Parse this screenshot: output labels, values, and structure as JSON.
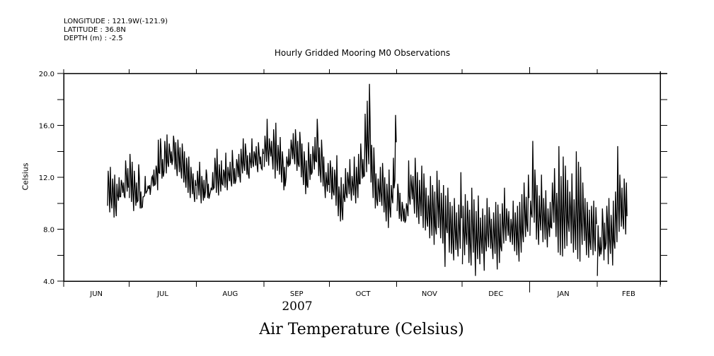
{
  "header": {
    "longitude": "LONGITUDE : 121.9W(-121.9)",
    "latitude": "LATITUDE : 36.8N",
    "depth": "DEPTH (m) : -2.5"
  },
  "chart_data": {
    "type": "line",
    "title": "Air Temperature (Celsius)",
    "subtitle": "Hourly Gridded Mooring M0 Observations",
    "xlabel": "2007",
    "ylabel": "Celsius",
    "ylim": [
      4,
      20
    ],
    "yticks": [
      "4.0",
      "8.0",
      "12.0",
      "16.0",
      "20.0"
    ],
    "y_minor_ticks": [
      6,
      10,
      14,
      18
    ],
    "x_range": [
      "2007-06-01",
      "2008-03-01"
    ],
    "grid": false,
    "x_tick_labels": [
      "JUN",
      "JUL",
      "AUG",
      "SEP",
      "OCT",
      "NOV",
      "DEC",
      "JAN",
      "FEB"
    ],
    "color": "#000000",
    "months": [
      {
        "name": "JUN",
        "days": 30,
        "start_day": 21,
        "high": [
          12.5,
          12.8,
          11.9,
          12.2,
          11.5,
          12.0,
          11.8,
          11.6,
          13.3,
          12.7
        ],
        "low": [
          9.8,
          9.3,
          9.6,
          8.9,
          9.0,
          10.2,
          10.5,
          10.8,
          10.4,
          10.9
        ]
      },
      {
        "name": "JUL",
        "days": 31,
        "start_day": 1,
        "high": [
          13.8,
          13.2,
          12.5,
          11.6,
          13.0,
          10.9,
          10.5,
          12.1,
          11.0,
          11.4,
          12.0,
          12.6,
          12.9,
          14.9,
          15.0,
          13.4,
          14.8,
          15.3,
          14.6,
          14.0,
          15.2,
          14.7,
          14.9,
          14.3,
          14.6,
          14.0,
          13.5,
          13.6,
          12.8,
          12.3,
          11.8
        ],
        "low": [
          10.4,
          10.1,
          9.4,
          9.8,
          10.2,
          9.6,
          9.7,
          10.6,
          10.9,
          11.1,
          11.4,
          11.3,
          11.5,
          11.0,
          12.3,
          11.9,
          12.5,
          12.3,
          12.8,
          13.1,
          13.4,
          12.6,
          12.1,
          12.4,
          11.9,
          11.6,
          11.2,
          10.8,
          10.4,
          10.7,
          10.1
        ]
      },
      {
        "name": "AUG",
        "days": 31,
        "start_day": 1,
        "high": [
          12.5,
          13.2,
          12.1,
          11.8,
          12.6,
          11.5,
          10.9,
          12.4,
          13.5,
          14.2,
          13.0,
          13.3,
          12.6,
          13.9,
          12.8,
          13.2,
          14.1,
          12.7,
          13.4,
          13.8,
          14.2,
          15.0,
          14.6,
          13.7,
          13.9,
          15.0,
          14.0,
          14.4,
          14.7,
          13.6,
          14.2
        ],
        "low": [
          10.3,
          10.6,
          10.0,
          10.2,
          10.9,
          10.4,
          10.7,
          11.0,
          11.2,
          10.8,
          10.6,
          10.9,
          11.4,
          11.2,
          11.0,
          11.7,
          11.3,
          11.5,
          11.8,
          12.0,
          11.6,
          12.3,
          12.5,
          12.2,
          11.9,
          12.7,
          12.8,
          12.9,
          12.4,
          13.0,
          12.6
        ]
      },
      {
        "name": "SEP",
        "days": 30,
        "start_day": 1,
        "high": [
          15.2,
          16.5,
          15.0,
          14.8,
          15.7,
          16.2,
          14.5,
          15.1,
          14.0,
          12.8,
          13.6,
          14.2,
          14.9,
          15.4,
          15.7,
          14.8,
          15.5,
          14.6,
          14.0,
          13.3,
          14.7,
          13.8,
          14.4,
          15.1,
          16.5,
          14.3,
          14.9,
          13.6,
          12.4,
          13.1
        ],
        "low": [
          12.8,
          13.2,
          12.9,
          13.6,
          12.6,
          11.9,
          12.5,
          12.2,
          11.6,
          11.0,
          12.0,
          12.8,
          13.1,
          13.4,
          13.0,
          12.5,
          12.8,
          12.0,
          11.4,
          10.7,
          11.2,
          11.8,
          12.4,
          12.6,
          13.2,
          12.1,
          11.6,
          11.3,
          10.4,
          10.9
        ]
      },
      {
        "name": "OCT",
        "days": 31,
        "start_day": 1,
        "high": [
          13.3,
          12.8,
          12.6,
          13.7,
          11.3,
          12.0,
          11.5,
          12.7,
          12.4,
          13.4,
          12.1,
          13.6,
          12.8,
          13.8,
          14.6,
          13.4,
          16.9,
          17.9,
          19.2,
          14.5,
          14.3,
          12.3,
          11.9,
          12.8,
          13.1,
          12.0,
          11.5,
          12.6,
          11.4,
          13.5,
          16.8
        ],
        "low": [
          10.8,
          10.3,
          10.6,
          9.8,
          9.0,
          8.6,
          8.7,
          10.1,
          10.4,
          10.7,
          10.2,
          10.6,
          10.0,
          10.4,
          11.5,
          11.9,
          12.1,
          12.4,
          13.0,
          11.6,
          10.4,
          9.6,
          9.8,
          10.1,
          9.8,
          9.3,
          8.6,
          8.1,
          8.9,
          10.0,
          11.8
        ]
      },
      {
        "name": "NOV",
        "days": 30,
        "start_day": 1,
        "high": [
          11.5,
          10.8,
          10.1,
          9.6,
          10.0,
          13.3,
          12.2,
          12.1,
          13.5,
          12.4,
          11.8,
          12.9,
          12.3,
          11.2,
          10.6,
          12.1,
          11.4,
          10.9,
          12.5,
          11.8,
          10.8,
          11.4,
          10.6,
          11.2,
          10.1,
          9.8,
          10.4,
          9.3,
          9.9,
          12.4
        ],
        "low": [
          9.4,
          8.8,
          8.6,
          8.6,
          8.7,
          9.0,
          9.9,
          10.3,
          9.2,
          8.9,
          8.4,
          9.0,
          8.1,
          7.9,
          8.2,
          7.3,
          7.5,
          6.8,
          7.6,
          8.1,
          7.3,
          6.9,
          5.1,
          7.7,
          6.2,
          6.1,
          5.6,
          6.4,
          5.9,
          6.5
        ]
      },
      {
        "name": "DEC",
        "days": 31,
        "start_day": 1,
        "high": [
          9.8,
          10.7,
          10.2,
          9.5,
          11.2,
          10.3,
          9.4,
          10.6,
          8.9,
          9.6,
          9.1,
          10.4,
          9.7,
          8.8,
          9.3,
          10.1,
          9.9,
          9.2,
          10.0,
          11.2,
          9.6,
          9.4,
          8.8,
          10.2,
          9.3,
          9.8,
          10.1,
          10.7,
          11.6,
          10.5,
          12.2
        ],
        "low": [
          5.3,
          6.0,
          6.8,
          5.4,
          5.2,
          6.2,
          4.4,
          5.7,
          5.3,
          6.1,
          4.8,
          6.3,
          6.6,
          6.5,
          5.7,
          6.1,
          4.9,
          5.4,
          6.3,
          6.9,
          7.1,
          7.5,
          7.0,
          6.8,
          6.3,
          6.0,
          5.5,
          6.2,
          7.0,
          7.4,
          7.8
        ]
      },
      {
        "name": "JAN",
        "days": 31,
        "start_day": 1,
        "high": [
          10.2,
          14.8,
          12.6,
          11.4,
          10.6,
          12.2,
          10.4,
          11.0,
          9.6,
          10.1,
          11.6,
          12.7,
          10.8,
          14.4,
          12.1,
          13.6,
          12.9,
          11.8,
          10.9,
          12.3,
          10.3,
          14.0,
          13.2,
          12.8,
          11.6,
          10.4,
          10.1,
          9.5,
          9.8,
          10.2,
          9.7
        ],
        "low": [
          7.5,
          8.9,
          8.5,
          7.2,
          6.8,
          7.9,
          7.0,
          7.2,
          6.6,
          7.4,
          8.1,
          8.5,
          7.4,
          6.2,
          6.0,
          5.9,
          6.5,
          6.7,
          7.8,
          6.9,
          6.2,
          6.4,
          5.7,
          5.5,
          6.8,
          7.1,
          6.0,
          5.8,
          6.4,
          6.0,
          6.3
        ]
      },
      {
        "name": "FEB",
        "days": 29,
        "start_day": 1,
        "high": [
          8.3,
          7.4,
          9.6,
          8.5,
          9.8,
          10.4,
          9.1,
          10.2,
          10.9,
          14.4,
          12.2,
          11.2,
          11.9,
          11.6
        ],
        "low": [
          4.4,
          5.9,
          6.6,
          5.6,
          6.9,
          5.3,
          6.1,
          5.2,
          6.5,
          7.0,
          7.8,
          8.2,
          8.0,
          7.6
        ]
      }
    ]
  }
}
